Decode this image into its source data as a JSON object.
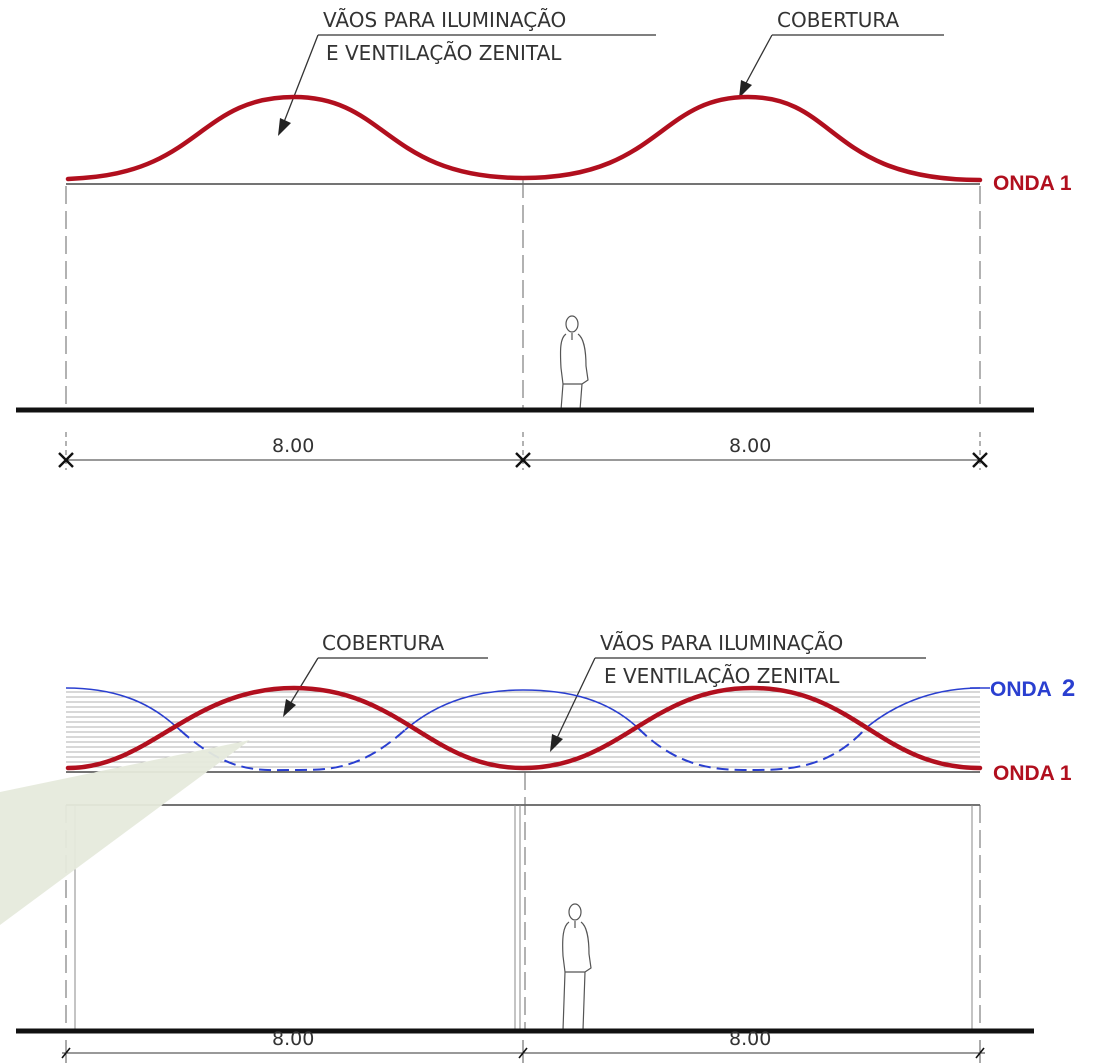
{
  "colors": {
    "wave1": "#b10f1e",
    "wave2": "#2a3fd0",
    "callout": "#e6eadc",
    "line": "#222222"
  },
  "top_section": {
    "label_openings_line1": "VÃOS PARA ILUMINAÇÃO",
    "label_openings_line2": "E  VENTILAÇÃO ZENITAL",
    "label_roof": "COBERTURA",
    "wave1_label": "ONDA 1",
    "dimension_left": "8.00",
    "dimension_right": "8.00"
  },
  "bottom_section": {
    "label_roof": "COBERTURA",
    "label_openings_line1": "VÃOS PARA ILUMINAÇÃO",
    "label_openings_line2": "E  VENTILAÇÃO ZENITAL",
    "wave2_label_text": "ONDA",
    "wave2_label_number": "2",
    "wave1_label": "ONDA 1",
    "dimension_left": "8.00",
    "dimension_right": "8.00"
  }
}
